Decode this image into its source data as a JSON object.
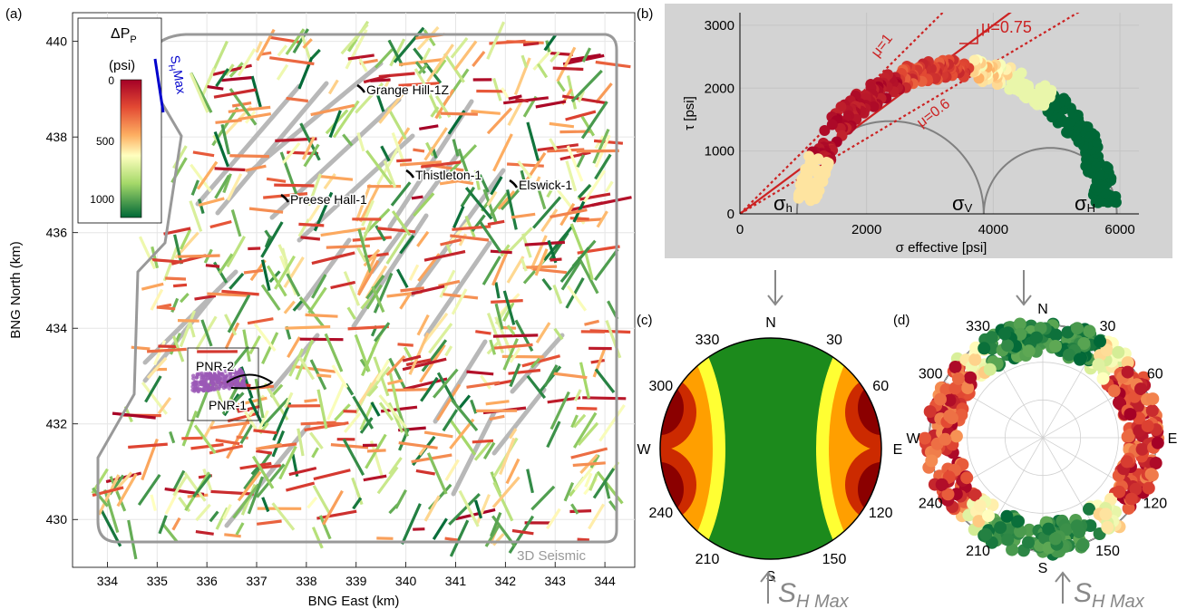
{
  "panels": {
    "a": "(a)",
    "b": "(b)",
    "c": "(c)",
    "d": "(d)"
  },
  "map": {
    "xlabel": "BNG East (km)",
    "ylabel": "BNG North (km)",
    "xticks": [
      334,
      335,
      336,
      337,
      338,
      339,
      340,
      341,
      342,
      343,
      344
    ],
    "yticks": [
      430,
      432,
      434,
      436,
      438,
      440
    ],
    "xlim": [
      333.3,
      344.6
    ],
    "ylim": [
      429,
      440.6
    ],
    "colorbar_title_1": "ΔP",
    "colorbar_title_sub": "P",
    "colorbar_title_2": "(psi)",
    "colorbar_ticks": [
      0,
      500,
      1000
    ],
    "shmax_label": "S",
    "shmax_sub": "H",
    "shmax_label_2": "Max",
    "seismic_label": "3D Seismic",
    "wells": [
      {
        "name": "Grange Hill-1Z",
        "x": 339.3,
        "y": 438.9
      },
      {
        "name": "Thistleton-1",
        "x": 340.4,
        "y": 436.9
      },
      {
        "name": "Elswick-1",
        "x": 342.6,
        "y": 436.8
      },
      {
        "name": "Preese Hall-1",
        "x": 337.7,
        "y": 436.6
      },
      {
        "name": "PNR-2",
        "x": 335.8,
        "y": 433.0
      },
      {
        "name": "PNR-1",
        "x": 336.2,
        "y": 432.4
      }
    ],
    "colors": {
      "low": "#006837",
      "mid": "#ffffbf",
      "high": "#a50026",
      "seismic_outline": "#999999",
      "shmax": "#0000cc",
      "events": "#9b59b6"
    }
  },
  "mohr": {
    "xlabel": "σ effective [psi]",
    "ylabel": "τ [psi]",
    "xticks": [
      0,
      2000,
      4000,
      6000
    ],
    "yticks": [
      0,
      1000,
      2000,
      3000
    ],
    "xlim": [
      0,
      6300
    ],
    "ylim": [
      0,
      3200
    ],
    "mu_labels": [
      "μ=1",
      "μ=0.75",
      "μ=0.6"
    ],
    "mu_values": [
      1,
      0.75,
      0.6
    ],
    "sigma_h": "σ",
    "sigma_h_sub": "h",
    "sigma_v": "σ",
    "sigma_v_sub": "V",
    "sigma_H": "σ",
    "sigma_H_sub": "H",
    "principal_stresses": {
      "sigma_h": 900,
      "sigma_v": 3850,
      "sigma_H": 5950
    },
    "background": "#d3d3d3"
  },
  "stereonet_c": {
    "azimuth_labels": [
      "N",
      "30",
      "60",
      "E",
      "120",
      "150",
      "S",
      "210",
      "240",
      "W",
      "300",
      "330"
    ],
    "shmax_label": "S",
    "shmax_sub": "H Max"
  },
  "stereonet_d": {
    "azimuth_labels": [
      "N",
      "30",
      "60",
      "E",
      "120",
      "150",
      "S",
      "210",
      "240",
      "W",
      "300",
      "330"
    ],
    "shmax_label": "S",
    "shmax_sub": "H Max"
  },
  "chart_data": [
    {
      "type": "scatter",
      "title": "",
      "xlabel": "BNG East (km)",
      "ylabel": "BNG North (km)",
      "xlim": [
        333.3,
        344.6
      ],
      "ylim": [
        429,
        440.6
      ],
      "note_series": "fault segments colored by ΔPp (psi) 0–1000+"
    },
    {
      "type": "scatter",
      "title": "",
      "xlabel": "σ effective [psi]",
      "ylabel": "τ [psi]",
      "xlim": [
        0,
        6300
      ],
      "ylim": [
        0,
        3200
      ],
      "lines": [
        {
          "name": "μ=1",
          "slope": 1
        },
        {
          "name": "μ=0.75",
          "slope": 0.75
        },
        {
          "name": "μ=0.6",
          "slope": 0.6
        }
      ]
    }
  ]
}
